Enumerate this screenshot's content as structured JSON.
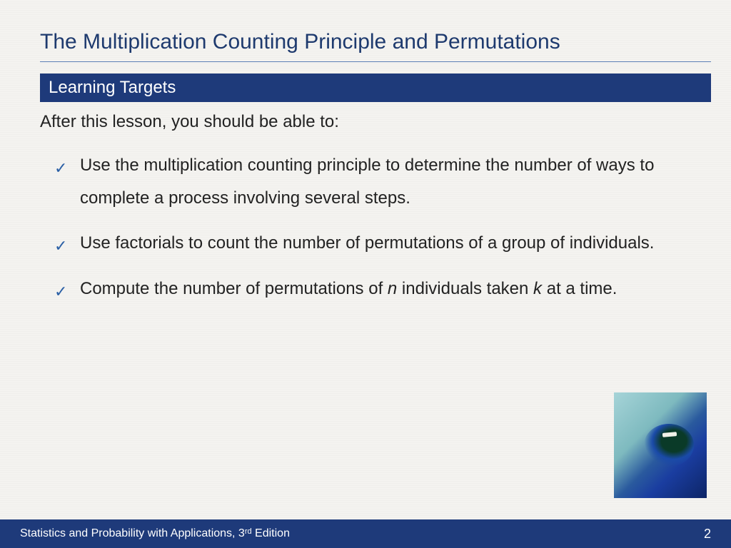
{
  "title": "The Multiplication Counting Principle and Permutations",
  "section_header": "Learning Targets",
  "intro": "After this lesson, you should be able to:",
  "bullets": [
    {
      "pre": "Use the multiplication counting principle to determine the number of ways to complete a process involving several steps.",
      "hasItalic": false
    },
    {
      "pre": "Use factorials to count the number of permutations of a group of individuals.",
      "hasItalic": false
    },
    {
      "pre": "Compute the number of permutations of ",
      "it1": "n",
      "mid": " individuals taken ",
      "it2": "k",
      "post": " at a time.",
      "hasItalic": true
    }
  ],
  "footer": {
    "text_pre": "Statistics and Probability with Applications, 3",
    "sup": "rd",
    "text_post": " Edition",
    "page": "2"
  },
  "colors": {
    "title_color": "#1e3a6e",
    "header_bg": "#1e3a7a",
    "check_color": "#2a5fa5",
    "footer_bg": "#1e3a7a",
    "background": "#f4f3f0"
  }
}
